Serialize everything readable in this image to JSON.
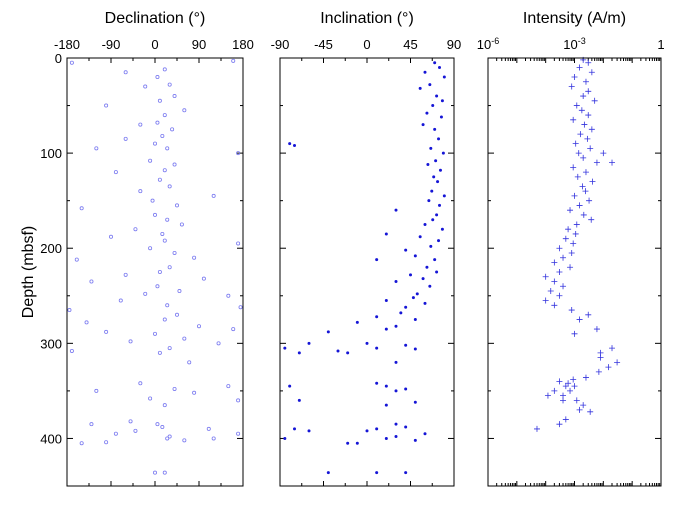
{
  "chart_data": [
    {
      "type": "scatter",
      "title": "Declination (°)",
      "ylabel": "Depth (mbsf)",
      "xlim": [
        -180,
        180
      ],
      "ylim": [
        0,
        450
      ],
      "y_inverted": true,
      "x_ticks": [
        "-180",
        "-90",
        "0",
        "90",
        "180"
      ],
      "y_ticks": [
        "0",
        "100",
        "200",
        "300",
        "400"
      ],
      "marker": "open-circle",
      "color": "#7b7bf0",
      "series": [
        {
          "x": [
            160,
            -170,
            20,
            -60,
            5,
            30,
            -20,
            40,
            10,
            -100,
            60,
            20,
            5,
            -30,
            35,
            15,
            -60,
            0,
            25,
            -120,
            170,
            -10,
            40,
            20,
            -80,
            10,
            30,
            -30,
            120,
            -5,
            45,
            -150,
            0,
            25,
            55,
            -40,
            15,
            -90,
            20,
            170,
            -10,
            40,
            80,
            -160,
            30,
            10,
            -60,
            100,
            -130,
            5,
            50,
            -20,
            150,
            -70,
            25,
            175,
            -175,
            45,
            20,
            -140,
            90,
            160,
            -100,
            0,
            60,
            -50,
            130,
            30,
            -170,
            10,
            70,
            -30,
            150,
            40,
            -120,
            80,
            -10,
            170,
            20,
            -50,
            -130,
            15,
            110,
            -80,
            30,
            25,
            60,
            -150,
            170,
            5,
            -40,
            120,
            -100,
            0,
            20
          ],
          "y": [
            3,
            5,
            12,
            15,
            20,
            28,
            30,
            40,
            45,
            50,
            55,
            60,
            68,
            70,
            75,
            82,
            85,
            90,
            95,
            95,
            100,
            108,
            112,
            118,
            120,
            128,
            135,
            140,
            145,
            150,
            155,
            158,
            165,
            170,
            175,
            180,
            185,
            188,
            192,
            195,
            200,
            205,
            210,
            212,
            220,
            225,
            228,
            232,
            235,
            240,
            245,
            248,
            250,
            255,
            260,
            262,
            265,
            270,
            275,
            278,
            282,
            285,
            288,
            290,
            295,
            298,
            300,
            305,
            308,
            310,
            320,
            342,
            345,
            348,
            350,
            352,
            358,
            360,
            365,
            382,
            385,
            388,
            390,
            395,
            398,
            400,
            402,
            405,
            395,
            385,
            392,
            400,
            404,
            436,
            436
          ]
        }
      ]
    },
    {
      "type": "scatter",
      "title": "Inclination (°)",
      "xlim": [
        -90,
        90
      ],
      "ylim": [
        0,
        450
      ],
      "y_inverted": true,
      "x_ticks": [
        "-90",
        "-45",
        "0",
        "45",
        "90"
      ],
      "marker": "filled-dot",
      "color": "#1515d6",
      "series": [
        {
          "x": [
            70,
            75,
            60,
            80,
            65,
            55,
            72,
            78,
            68,
            62,
            77,
            58,
            70,
            -80,
            -75,
            74,
            66,
            79,
            71,
            63,
            76,
            69,
            73,
            67,
            80,
            64,
            75,
            30,
            72,
            68,
            60,
            78,
            20,
            55,
            74,
            66,
            40,
            50,
            70,
            10,
            62,
            72,
            45,
            58,
            30,
            65,
            52,
            48,
            20,
            60,
            40,
            35,
            10,
            50,
            -10,
            30,
            20,
            -40,
            -60,
            -85,
            -70,
            -30,
            0,
            10,
            -20,
            40,
            50,
            30,
            10,
            20,
            40,
            30,
            -80,
            -70,
            50,
            20,
            30,
            40,
            10,
            0,
            -75,
            -60,
            20,
            50,
            -85,
            -20,
            30,
            60,
            10,
            -40,
            40,
            -10
          ],
          "y": [
            5,
            10,
            15,
            20,
            28,
            32,
            40,
            45,
            50,
            58,
            62,
            70,
            75,
            90,
            92,
            85,
            95,
            100,
            108,
            112,
            118,
            125,
            130,
            140,
            145,
            150,
            155,
            160,
            165,
            170,
            175,
            180,
            185,
            188,
            192,
            198,
            202,
            208,
            212,
            212,
            220,
            225,
            228,
            232,
            235,
            240,
            248,
            252,
            255,
            258,
            262,
            268,
            272,
            275,
            278,
            282,
            285,
            288,
            300,
            305,
            310,
            308,
            300,
            305,
            310,
            302,
            306,
            320,
            342,
            345,
            348,
            350,
            345,
            360,
            362,
            365,
            385,
            388,
            390,
            392,
            390,
            392,
            400,
            402,
            400,
            405,
            398,
            395,
            436,
            436,
            436,
            405
          ]
        }
      ]
    },
    {
      "type": "scatter",
      "title": "Intensity (A/m)",
      "x_scale": "log",
      "xlim": [
        1e-06,
        1
      ],
      "ylim": [
        0,
        450
      ],
      "y_inverted": true,
      "x_ticks": [
        "10-6",
        "10-3",
        "1"
      ],
      "marker": "plus",
      "color": "#3333dd",
      "series": [
        {
          "x": [
            0.002,
            0.003,
            0.0015,
            0.004,
            0.001,
            0.0025,
            0.0008,
            0.003,
            0.002,
            0.005,
            0.0012,
            0.0018,
            0.003,
            0.0009,
            0.0022,
            0.004,
            0.0016,
            0.0028,
            0.0011,
            0.0035,
            0.0014,
            0.002,
            0.006,
            0.0009,
            0.0025,
            0.0013,
            0.0042,
            0.0019,
            0.0024,
            0.001,
            0.0032,
            0.0015,
            0.0007,
            0.0021,
            0.0038,
            0.0012,
            0.0006,
            0.0011,
            0.0005,
            0.0009,
            0.0003,
            0.0008,
            0.0004,
            0.0002,
            0.0007,
            0.0003,
            0.0001,
            0.0002,
            0.0004,
            0.00015,
            0.0003,
            0.0001,
            0.0002,
            0.0008,
            0.003,
            0.0015,
            0.006,
            0.001,
            0.02,
            0.008,
            0.0003,
            0.0005,
            0.0002,
            0.00012,
            0.0004,
            0.002,
            0.0015,
            0.0035,
            0.001,
            0.0007,
            0.0006,
            0.0009,
            0.0025,
            0.0004,
            0.0012,
            0.0005,
            0.0003,
            5e-05,
            0.01,
            0.02,
            0.03,
            0.015,
            0.008,
            0.007
          ],
          "y": [
            2,
            5,
            10,
            15,
            20,
            25,
            30,
            35,
            40,
            45,
            50,
            55,
            60,
            65,
            70,
            75,
            80,
            85,
            90,
            95,
            100,
            105,
            110,
            115,
            120,
            125,
            130,
            135,
            140,
            145,
            150,
            155,
            160,
            165,
            170,
            175,
            180,
            185,
            190,
            195,
            200,
            205,
            210,
            215,
            220,
            225,
            230,
            235,
            240,
            245,
            250,
            255,
            260,
            265,
            270,
            275,
            285,
            290,
            305,
            310,
            340,
            345,
            350,
            355,
            360,
            365,
            370,
            372,
            345,
            350,
            342,
            338,
            336,
            355,
            360,
            380,
            385,
            390,
            100,
            110,
            320,
            325,
            315,
            330
          ]
        }
      ]
    }
  ]
}
